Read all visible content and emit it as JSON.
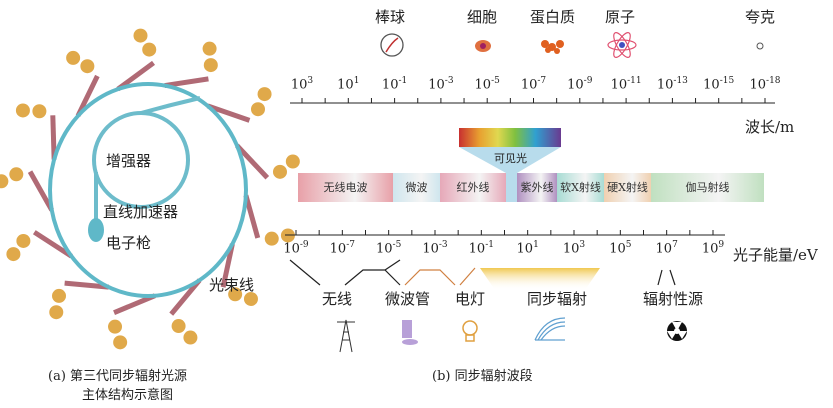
{
  "left": {
    "booster": "增强器",
    "linac": "直线加速器",
    "gun": "电子枪",
    "beamline": "光束线",
    "caption_line1": "(a) 第三代同步辐射光源",
    "caption_line2": "主体结构示意图",
    "colors": {
      "ring": "#5fb8c8",
      "beamline": "#b06a75",
      "station": "#e0a94a"
    }
  },
  "right": {
    "objects": [
      "棒球",
      "细胞",
      "蛋白质",
      "原子",
      "夸克"
    ],
    "wavelength_ticks": [
      "10^3",
      "10^1",
      "10^-1",
      "10^-3",
      "10^-5",
      "10^-7",
      "10^-9",
      "10^-11",
      "10^-13",
      "10^-15",
      "10^-18"
    ],
    "wavelength_label": "波长/m",
    "visible": "可见光",
    "bands": [
      {
        "label": "无线电波",
        "color": "#e8a0a8"
      },
      {
        "label": "微波",
        "color": "#cfe6ee"
      },
      {
        "label": "红外线",
        "color": "#e6a8b8"
      },
      {
        "label": "紫外线",
        "color": "#b090c0"
      },
      {
        "label": "软X射线",
        "color": "#a8dcd4"
      },
      {
        "label": "硬X射线",
        "color": "#f0d0b0"
      },
      {
        "label": "伽马射线",
        "color": "#c0e0c0"
      }
    ],
    "energy_ticks": [
      "10^-9",
      "10^-7",
      "10^-5",
      "10^-3",
      "10^-1",
      "10^1",
      "10^3",
      "10^5",
      "10^7",
      "10^9"
    ],
    "energy_label": "光子能量/eV",
    "sources": [
      "无线",
      "微波管",
      "电灯",
      "同步辐射",
      "辐射性源"
    ],
    "caption": "(b) 同步辐射波段"
  }
}
